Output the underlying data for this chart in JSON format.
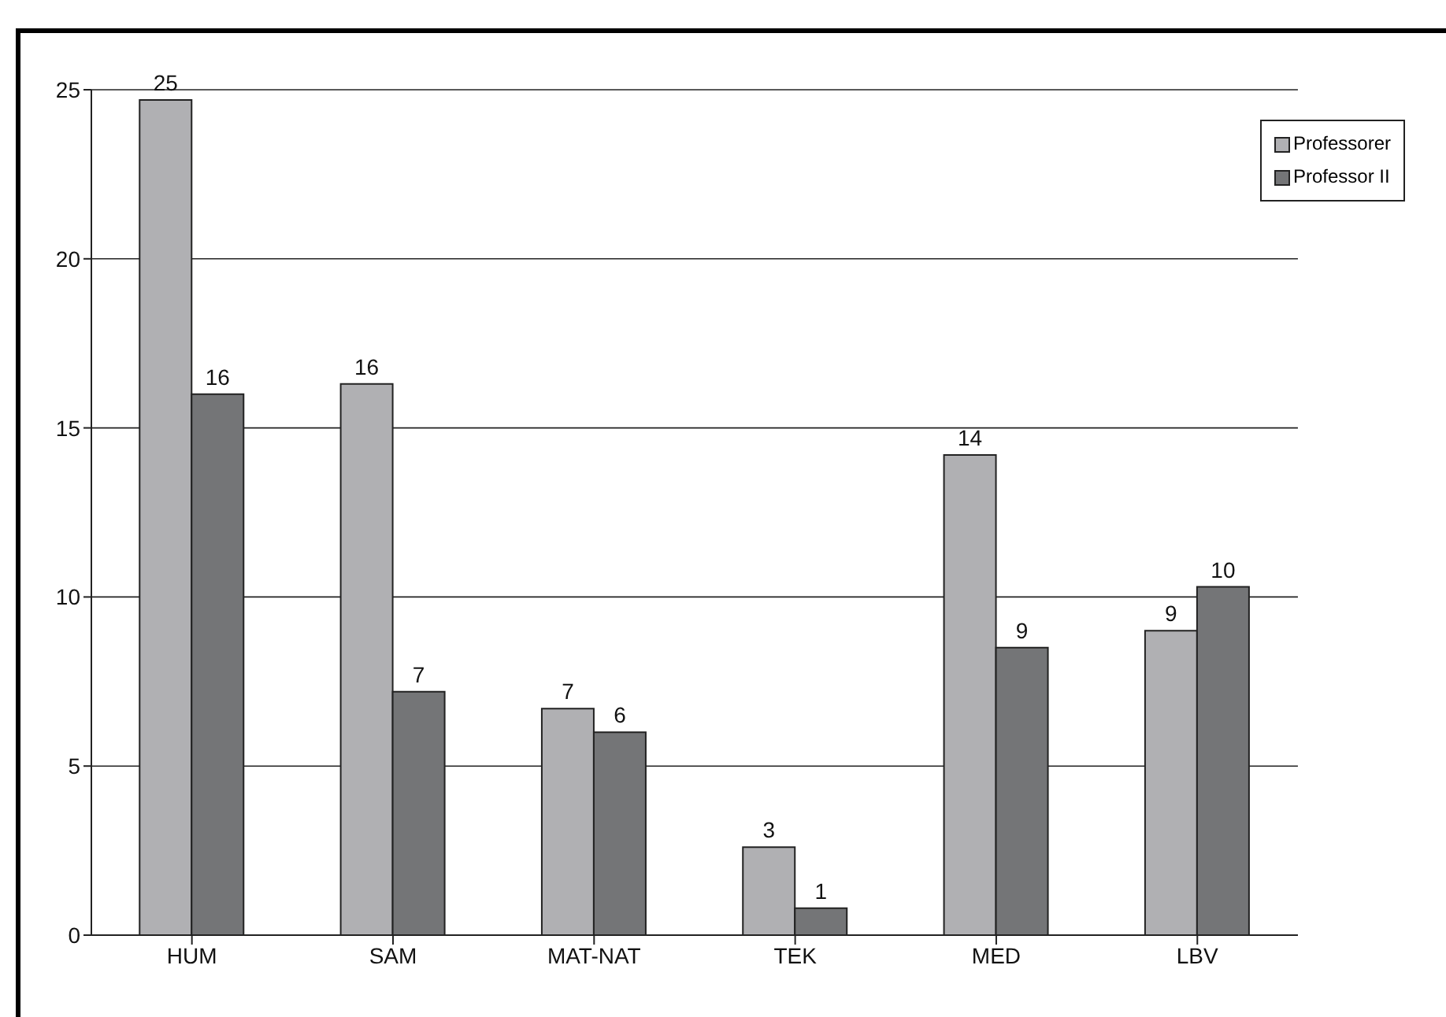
{
  "chart_data": {
    "type": "bar",
    "categories": [
      "HUM",
      "SAM",
      "MAT-NAT",
      "TEK",
      "MED",
      "LBV"
    ],
    "series": [
      {
        "name": "Professorer",
        "color": "#b0b0b3",
        "values": [
          24.7,
          16.3,
          6.7,
          2.6,
          14.2,
          9.0
        ],
        "value_labels": [
          "25",
          "16",
          "7",
          "3",
          "14",
          "9"
        ]
      },
      {
        "name": "Professor II",
        "color": "#747577",
        "values": [
          16.0,
          7.2,
          6.0,
          0.8,
          8.5,
          10.3
        ],
        "value_labels": [
          "16",
          "7",
          "6",
          "1",
          "9",
          "10"
        ]
      }
    ],
    "ylim": [
      0,
      25
    ],
    "yticks": [
      0,
      5,
      10,
      15,
      20,
      25
    ],
    "grid": "y",
    "legend": "top right"
  }
}
